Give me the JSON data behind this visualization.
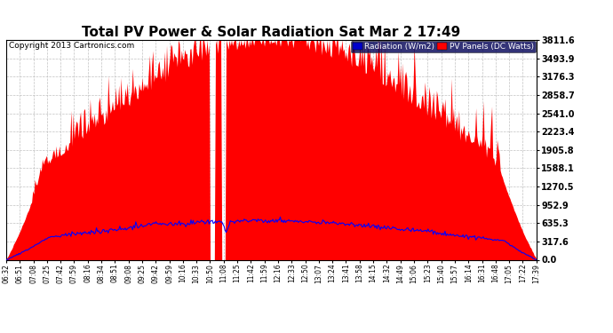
{
  "title": "Total PV Power & Solar Radiation Sat Mar 2 17:49",
  "copyright": "Copyright 2013 Cartronics.com",
  "background_color": "#ffffff",
  "plot_bg_color": "#ffffff",
  "grid_color": "#bbbbbb",
  "ytick_labels": [
    "0.0",
    "317.6",
    "635.3",
    "952.9",
    "1270.5",
    "1588.1",
    "1905.8",
    "2223.4",
    "2541.0",
    "2858.7",
    "3176.3",
    "3493.9",
    "3811.6"
  ],
  "ytick_values": [
    0.0,
    317.6,
    635.3,
    952.9,
    1270.5,
    1588.1,
    1905.8,
    2223.4,
    2541.0,
    2858.7,
    3176.3,
    3493.9,
    3811.6
  ],
  "ymax": 3811.6,
  "xtick_labels": [
    "06:32",
    "06:51",
    "07:08",
    "07:25",
    "07:42",
    "07:59",
    "08:16",
    "08:34",
    "08:51",
    "09:08",
    "09:25",
    "09:42",
    "09:59",
    "10:16",
    "10:33",
    "10:50",
    "11:08",
    "11:25",
    "11:42",
    "11:59",
    "12:16",
    "12:33",
    "12:50",
    "13:07",
    "13:24",
    "13:41",
    "13:58",
    "14:15",
    "14:32",
    "14:49",
    "15:06",
    "15:23",
    "15:40",
    "15:57",
    "16:14",
    "16:31",
    "16:48",
    "17:05",
    "17:22",
    "17:39"
  ],
  "legend_radiation_label": "Radiation (W/m2)",
  "legend_pv_label": "PV Panels (DC Watts)",
  "legend_radiation_bg": "#0000cc",
  "legend_pv_bg": "#ff0000",
  "pv_color": "#ff0000",
  "radiation_color": "#0000ff",
  "title_fontsize": 11,
  "copyright_fontsize": 6.5,
  "tick_fontsize": 5.5,
  "legend_fontsize": 6.5,
  "ytick_fontsize": 7,
  "n_points": 500
}
